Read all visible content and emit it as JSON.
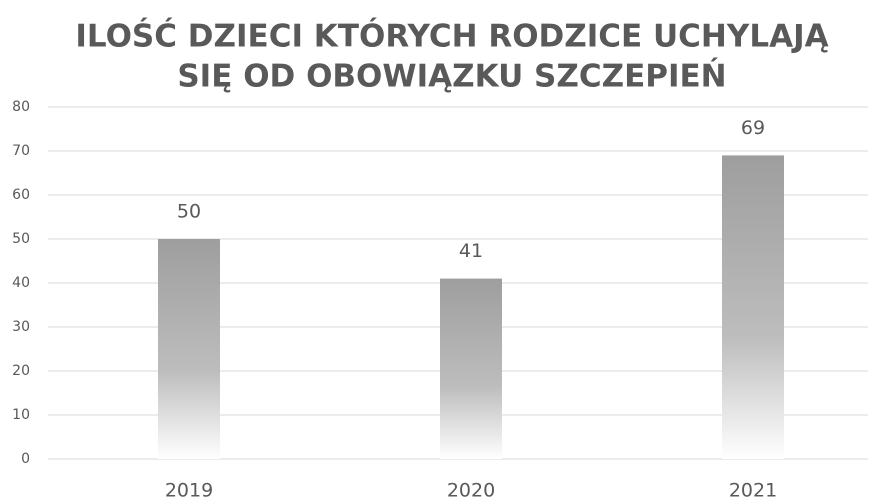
{
  "chart_data": {
    "type": "bar",
    "title": [
      "ILOŚĆ DZIECI KTÓRYCH RODZICE UCHYLAJĄ",
      "SIĘ OD OBOWIĄZKU SZCZEPIEŃ"
    ],
    "categories": [
      "2019",
      "2020",
      "2021"
    ],
    "values": [
      50,
      41,
      69
    ],
    "color": "#9e9e9e",
    "ylim": [
      0,
      80
    ],
    "yticks": [
      0,
      10,
      20,
      30,
      40,
      50,
      60,
      70,
      80
    ],
    "grid": true
  }
}
